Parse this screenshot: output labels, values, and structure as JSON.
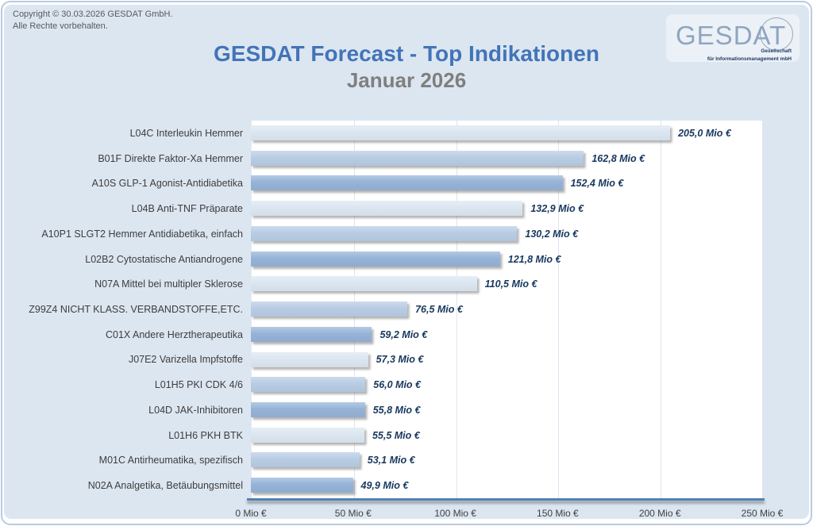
{
  "page": {
    "copyright_line1": "Copyright © 30.03.2026 GESDAT GmbH.",
    "copyright_line2": "Alle Rechte vorbehalten.",
    "title": "GESDAT Forecast - Top Indikationen",
    "subtitle": "Januar 2026",
    "logo": {
      "word": "GESDAT",
      "sub_line1": "Gesellschaft",
      "sub_line2": "für Informationsmanagement mbH"
    }
  },
  "chart_data": {
    "type": "bar",
    "orientation": "horizontal",
    "title": "GESDAT Forecast - Top Indikationen",
    "subtitle": "Januar 2026",
    "categories": [
      "L04C Interleukin Hemmer",
      "B01F Direkte Faktor-Xa Hemmer",
      "A10S GLP-1 Agonist-Antidiabetika",
      "L04B Anti-TNF Präparate",
      "A10P1 SLGT2 Hemmer Antidiabetika, einfach",
      "L02B2 Cytostatische Antiandrogene",
      "N07A Mittel bei multipler Sklerose",
      "Z99Z4 NICHT KLASS. VERBANDSTOFFE,ETC.",
      "C01X Andere Herztherapeutika",
      "J07E2 Varizella Impfstoffe",
      "L01H5 PKI CDK 4/6",
      "L04D JAK-Inhibitoren",
      "L01H6 PKH BTK",
      "M01C Antirheumatika, spezifisch",
      "N02A Analgetika, Betäubungsmittel"
    ],
    "values": [
      205.0,
      162.8,
      152.4,
      132.9,
      130.2,
      121.8,
      110.5,
      76.5,
      59.2,
      57.3,
      56.0,
      55.8,
      55.5,
      53.1,
      49.9
    ],
    "value_labels": [
      "205,0 Mio €",
      "162,8 Mio €",
      "152,4 Mio €",
      "132,9 Mio €",
      "130,2 Mio €",
      "121,8 Mio €",
      "110,5 Mio €",
      "76,5 Mio €",
      "59,2 Mio €",
      "57,3 Mio €",
      "56,0 Mio €",
      "55,8 Mio €",
      "55,5 Mio €",
      "53,1 Mio €",
      "49,9 Mio €"
    ],
    "x_ticks": [
      "0 Mio €",
      "50 Mio €",
      "100 Mio €",
      "150 Mio €",
      "200 Mio €",
      "250 Mio €"
    ],
    "xlim": [
      0,
      250
    ],
    "grid": true,
    "legend": "none",
    "bar_color_cycle": [
      "#dce6f1",
      "#b8cce4",
      "#95b3d7"
    ],
    "value_label_color": "#17375e",
    "unit": "Mio €"
  }
}
